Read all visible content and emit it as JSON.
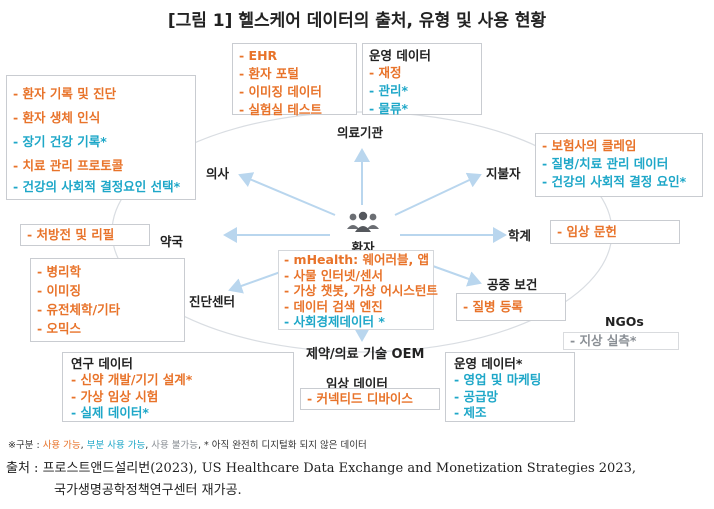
{
  "title": "[그림 1] 헬스케어 데이터의 출처, 유형 및 사용 현황",
  "center": {
    "icon": "people-icon",
    "label": "환자"
  },
  "nodes": {
    "medical": "의료기관",
    "doctor": "의사",
    "payer": "지불자",
    "pharmacy": "약국",
    "academia": "학계",
    "public_health": "공중 보건",
    "diagnostic": "진단센터",
    "ngos": "NGOs",
    "pharma_oem": "제약/의료 기술 OEM",
    "clinical": "임상 데이터"
  },
  "boxes": {
    "medical_data": [
      {
        "text": "- EHR",
        "status": "orange"
      },
      {
        "text": "- 환자 포털",
        "status": "orange"
      },
      {
        "text": "- 이미징 데이터",
        "status": "orange"
      },
      {
        "text": "- 실험실 테스트",
        "status": "orange"
      }
    ],
    "ops": {
      "header": "운영 데이터",
      "items": [
        {
          "text": "- 재정",
          "status": "orange"
        },
        {
          "text": "- 관리*",
          "status": "blue"
        },
        {
          "text": "- 물류*",
          "status": "blue"
        }
      ]
    },
    "doctor": [
      {
        "text": "- 환자 기록 및 진단",
        "status": "orange"
      },
      {
        "text": "- 환자 생체 인식",
        "status": "orange"
      },
      {
        "text": "- 장기 건강 기록*",
        "status": "blue"
      },
      {
        "text": "- 치료 관리 프로토콜",
        "status": "orange"
      },
      {
        "text": "- 건강의 사회적 결정요인 선택*",
        "status": "blue"
      }
    ],
    "payer": [
      {
        "text": "- 보험사의 클레임",
        "status": "orange"
      },
      {
        "text": "- 질병/치료 관리 데이터",
        "status": "blue"
      },
      {
        "text": "- 건강의 사회적 결정 요인*",
        "status": "blue"
      }
    ],
    "pharmacy": [
      {
        "text": "- 처방전 및 리필",
        "status": "orange"
      }
    ],
    "academia": [
      {
        "text": "- 임상 문헌",
        "status": "orange"
      }
    ],
    "patient": [
      {
        "text": "- mHealth: 웨어러블, 앱",
        "status": "orange"
      },
      {
        "text": "- 사물 인터넷/센서",
        "status": "orange"
      },
      {
        "text": "- 가상 챗봇, 가상 어시스턴트",
        "status": "orange"
      },
      {
        "text": "- 데이터 검색 엔진",
        "status": "orange"
      },
      {
        "text": "- 사회경제데이터 *",
        "status": "blue"
      }
    ],
    "public_health": [
      {
        "text": "- 질병 등록",
        "status": "orange"
      }
    ],
    "diagnostic": [
      {
        "text": "- 병리학",
        "status": "orange"
      },
      {
        "text": "- 이미징",
        "status": "orange"
      },
      {
        "text": "- 유전체학/기타",
        "status": "orange"
      },
      {
        "text": "- 오믹스",
        "status": "orange"
      }
    ],
    "ngos": [
      {
        "text": "- 지상 실측*",
        "status": "gray"
      }
    ],
    "research": {
      "header": "연구 데이터",
      "items": [
        {
          "text": "- 신약 개발/기기 설계*",
          "status": "orange"
        },
        {
          "text": "- 가상 임상 시험",
          "status": "orange"
        },
        {
          "text": "- 실제 데이터*",
          "status": "blue"
        }
      ]
    },
    "clinical": [
      {
        "text": "- 커넥티드 디바이스",
        "status": "orange"
      }
    ],
    "ops2": {
      "header": "운영 데이터*",
      "items": [
        {
          "text": "- 영업 및 마케팅",
          "status": "blue"
        },
        {
          "text": "- 공급망",
          "status": "blue"
        },
        {
          "text": "- 제조",
          "status": "blue"
        }
      ]
    }
  },
  "legend": {
    "prefix": "※구분 : ",
    "full": "사용 가능",
    "sep1": ", ",
    "partial": "부분 사용 가능",
    "sep2": ", ",
    "none": "사용 불가능",
    "suffix": ", * 아직 완전히 디지털화 되지 않은 데이터"
  },
  "source": {
    "line1": "출처 : 프로스트앤드설리번(2023), US Healthcare Data Exchange and Monetization Strategies 2023,",
    "line2": "국가생명공학정책연구센터 재가공."
  },
  "colors": {
    "available": "#e8732a",
    "partial": "#1ea7c8",
    "unavailable": "#8a8f95",
    "box_border": "#c9ccd1",
    "arrow": "#b9d6ee"
  }
}
